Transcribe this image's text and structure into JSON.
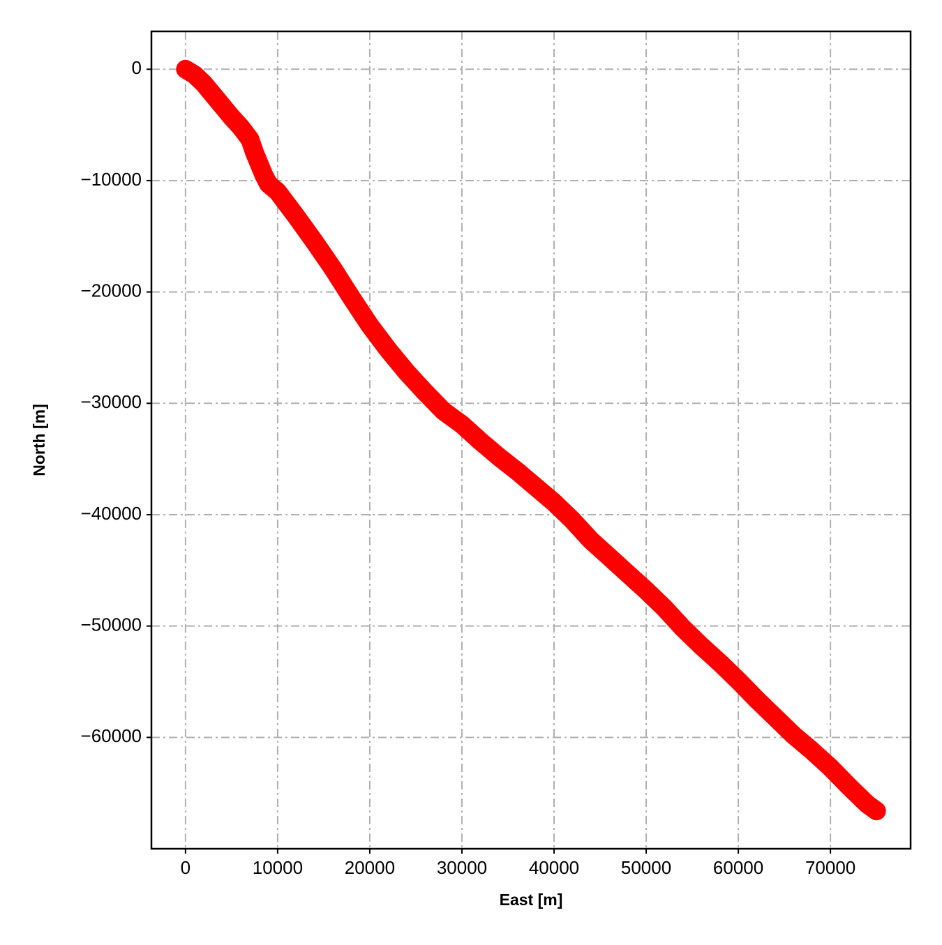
{
  "chart_data": {
    "type": "line",
    "xlabel": "East [m]",
    "ylabel": "North [m]",
    "color": "#ff0000",
    "grid": true,
    "xlim": [
      -3700,
      78700
    ],
    "ylim": [
      -70000,
      3400
    ],
    "xticks": [
      0,
      10000,
      20000,
      30000,
      40000,
      50000,
      60000,
      70000
    ],
    "yticks": [
      0,
      {
        "value": -10000,
        "label": "−10000"
      },
      {
        "value": -20000,
        "label": "−20000"
      },
      {
        "value": -30000,
        "label": "−30000"
      },
      {
        "value": -40000,
        "label": "−40000"
      },
      {
        "value": -50000,
        "label": "−50000"
      },
      {
        "value": -60000,
        "label": "−60000"
      }
    ],
    "x": [
      0,
      1000,
      2000,
      3000,
      4000,
      5000,
      6000,
      7000,
      7500,
      8000,
      8500,
      9000,
      10000,
      12000,
      14000,
      16000,
      18000,
      20000,
      22000,
      24000,
      26000,
      28000,
      30000,
      32000,
      34000,
      36000,
      38000,
      40000,
      42000,
      44000,
      46000,
      48000,
      50000,
      52000,
      54000,
      56000,
      58000,
      60000,
      62000,
      64000,
      66000,
      68000,
      70000,
      72000,
      74000,
      75000
    ],
    "values": [
      0,
      -500,
      -1300,
      -2300,
      -3300,
      -4300,
      -5200,
      -6300,
      -7500,
      -8500,
      -9500,
      -10300,
      -11000,
      -13200,
      -15500,
      -17900,
      -20500,
      -23000,
      -25200,
      -27200,
      -29000,
      -30700,
      -31900,
      -33400,
      -34800,
      -36100,
      -37500,
      -38900,
      -40500,
      -42300,
      -43800,
      -45300,
      -46800,
      -48400,
      -50200,
      -51800,
      -53300,
      -54900,
      -56600,
      -58200,
      -59800,
      -61200,
      -62700,
      -64400,
      -66000,
      -66600
    ]
  }
}
